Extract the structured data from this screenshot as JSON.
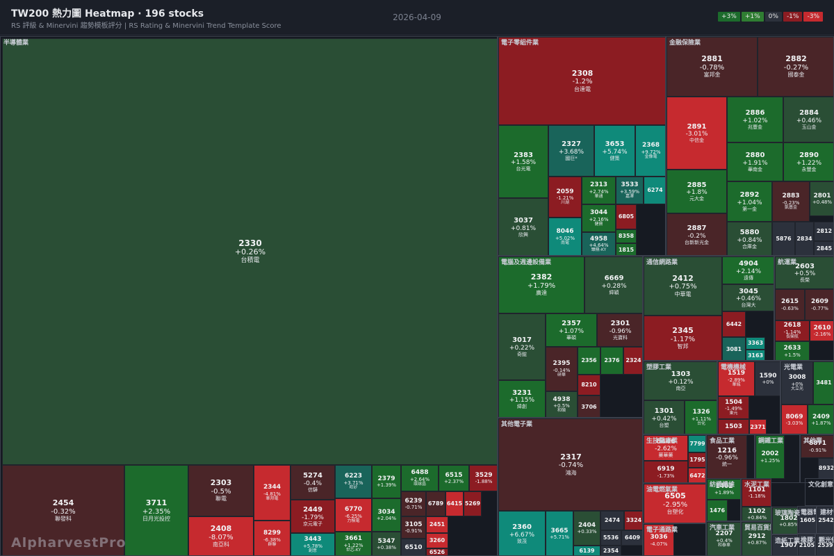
{
  "header": {
    "title": "TW200 熱力圖 Heatmap · 196 stocks",
    "subtitle": "RS 評級 & Minervini 趨勢模板評分 | RS Rating & Minervini Trend Template Score",
    "date": "2026-04-09",
    "legend": [
      {
        "label": "+3%",
        "color": "#1c6b2c"
      },
      {
        "label": "+1%",
        "color": "#2f7d32"
      },
      {
        "label": "0%",
        "color": "#2c313c"
      },
      {
        "label": "-1%",
        "color": "#8c1c22"
      },
      {
        "label": "-3%",
        "color": "#c62a2f"
      }
    ]
  },
  "watermark": "AlpharvestPro",
  "chart_data": {
    "type": "treemap",
    "sectors": [
      {
        "name": "半導體業",
        "stocks": [
          {
            "code": "2330",
            "chg": "+0.26%",
            "name": "台積電"
          },
          {
            "code": "2454",
            "chg": "-0.32%",
            "name": "聯發科"
          },
          {
            "code": "3711",
            "chg": "+2.35%",
            "name": "日月光投控"
          },
          {
            "code": "2303",
            "chg": "-0.5%",
            "name": "聯電"
          },
          {
            "code": "2408",
            "chg": "-8.07%",
            "name": "南亞科"
          },
          {
            "code": "2344",
            "chg": "-4.81%",
            "name": "華邦電"
          },
          {
            "code": "8299",
            "chg": "-6.38%",
            "name": "群聯"
          },
          {
            "code": "5274",
            "chg": "-0.4%",
            "name": "信驊"
          },
          {
            "code": "2449",
            "chg": "-1.79%",
            "name": "京元電子"
          },
          {
            "code": "3443",
            "chg": "+5.78%",
            "name": "創意"
          },
          {
            "code": "6223",
            "chg": "+3.71%",
            "name": "旺矽"
          },
          {
            "code": "6770",
            "chg": "-6.25%",
            "name": "力積電"
          },
          {
            "code": "3661",
            "chg": "+1.22%",
            "name": "世芯-KY"
          },
          {
            "code": "2379",
            "chg": "+1.39%",
            "name": ""
          },
          {
            "code": "3034",
            "chg": "+2.04%",
            "name": ""
          },
          {
            "code": "5347",
            "chg": "+0.38%",
            "name": ""
          },
          {
            "code": "6488",
            "chg": "+2.64%",
            "name": "環球晶"
          },
          {
            "code": "6515",
            "chg": "+2.37%",
            "name": ""
          },
          {
            "code": "3529",
            "chg": "-1.88%",
            "name": ""
          },
          {
            "code": "6239",
            "chg": "-0.71%",
            "name": ""
          },
          {
            "code": "6789",
            "chg": "",
            "name": ""
          },
          {
            "code": "6415",
            "chg": "",
            "name": ""
          },
          {
            "code": "5269",
            "chg": "",
            "name": ""
          },
          {
            "code": "2451",
            "chg": "",
            "name": ""
          },
          {
            "code": "3105",
            "chg": "-0.91%",
            "name": ""
          },
          {
            "code": "3260",
            "chg": "",
            "name": ""
          },
          {
            "code": "6510",
            "chg": "",
            "name": ""
          },
          {
            "code": "6526",
            "chg": "",
            "name": ""
          }
        ]
      },
      {
        "name": "電子零組件業",
        "stocks": [
          {
            "code": "2308",
            "chg": "-1.2%",
            "name": "台達電"
          },
          {
            "code": "2383",
            "chg": "+1.58%",
            "name": "台光電"
          },
          {
            "code": "2327",
            "chg": "+3.68%",
            "name": "國巨*"
          },
          {
            "code": "3653",
            "chg": "+5.74%",
            "name": "健策"
          },
          {
            "code": "2368",
            "chg": "+9.72%",
            "name": "金像電"
          },
          {
            "code": "3037",
            "chg": "+0.81%",
            "name": "欣興"
          },
          {
            "code": "2059",
            "chg": "-1.21%",
            "name": "川湖"
          },
          {
            "code": "2313",
            "chg": "+2.74%",
            "name": "華通"
          },
          {
            "code": "3533",
            "chg": "+3.59%",
            "name": "嘉澤"
          },
          {
            "code": "6274",
            "chg": "",
            "name": ""
          },
          {
            "code": "3044",
            "chg": "+2.16%",
            "name": "健鼎"
          },
          {
            "code": "6805",
            "chg": "",
            "name": ""
          },
          {
            "code": "8046",
            "chg": "+5.02%",
            "name": "南電"
          },
          {
            "code": "4958",
            "chg": "+4.64%",
            "name": "臻鼎-KY"
          },
          {
            "code": "8358",
            "chg": "",
            "name": ""
          },
          {
            "code": "1815",
            "chg": "",
            "name": ""
          }
        ]
      },
      {
        "name": "金融保險業",
        "stocks": [
          {
            "code": "2881",
            "chg": "-0.78%",
            "name": "富邦金"
          },
          {
            "code": "2882",
            "chg": "-0.27%",
            "name": "國泰金"
          },
          {
            "code": "2891",
            "chg": "-3.01%",
            "name": "中信金"
          },
          {
            "code": "2886",
            "chg": "+1.02%",
            "name": "兆豐金"
          },
          {
            "code": "2884",
            "chg": "+0.46%",
            "name": "玉山金"
          },
          {
            "code": "2880",
            "chg": "+1.91%",
            "name": "華南金"
          },
          {
            "code": "2890",
            "chg": "+1.22%",
            "name": "永豐金"
          },
          {
            "code": "2885",
            "chg": "+1.8%",
            "name": "元大金"
          },
          {
            "code": "2892",
            "chg": "+1.04%",
            "name": "第一金"
          },
          {
            "code": "2883",
            "chg": "-0.23%",
            "name": "凱基金"
          },
          {
            "code": "2801",
            "chg": "+0.48%",
            "name": ""
          },
          {
            "code": "2887",
            "chg": "-0.2%",
            "name": "台新新光金"
          },
          {
            "code": "5880",
            "chg": "+0.84%",
            "name": "合庫金"
          },
          {
            "code": "5876",
            "chg": "",
            "name": ""
          },
          {
            "code": "2834",
            "chg": "",
            "name": ""
          },
          {
            "code": "2812",
            "chg": "",
            "name": ""
          },
          {
            "code": "2845",
            "chg": "",
            "name": ""
          }
        ]
      },
      {
        "name": "電腦及週邊設備業",
        "stocks": [
          {
            "code": "2382",
            "chg": "+1.79%",
            "name": "廣達"
          },
          {
            "code": "6669",
            "chg": "+0.28%",
            "name": "緯穎"
          },
          {
            "code": "3017",
            "chg": "+0.22%",
            "name": "奇鋐"
          },
          {
            "code": "2357",
            "chg": "+1.07%",
            "name": "華碩"
          },
          {
            "code": "2301",
            "chg": "-0.96%",
            "name": "光寶科"
          },
          {
            "code": "2395",
            "chg": "-0.14%",
            "name": "研華"
          },
          {
            "code": "2356",
            "chg": "",
            "name": ""
          },
          {
            "code": "2376",
            "chg": "",
            "name": ""
          },
          {
            "code": "2324",
            "chg": "",
            "name": ""
          },
          {
            "code": "8210",
            "chg": "",
            "name": ""
          },
          {
            "code": "3231",
            "chg": "+1.15%",
            "name": "緯創"
          },
          {
            "code": "4938",
            "chg": "+0.5%",
            "name": "和碩"
          },
          {
            "code": "3706",
            "chg": "",
            "name": ""
          }
        ]
      },
      {
        "name": "通信網路業",
        "stocks": [
          {
            "code": "2412",
            "chg": "+0.75%",
            "name": "中華電"
          },
          {
            "code": "4904",
            "chg": "+2.14%",
            "name": "遠傳"
          },
          {
            "code": "3045",
            "chg": "+0.46%",
            "name": "台灣大"
          },
          {
            "code": "2345",
            "chg": "-1.17%",
            "name": "智邦"
          },
          {
            "code": "6442",
            "chg": "",
            "name": ""
          },
          {
            "code": "3081",
            "chg": "",
            "name": ""
          },
          {
            "code": "3363",
            "chg": "",
            "name": ""
          },
          {
            "code": "3163",
            "chg": "",
            "name": ""
          }
        ]
      },
      {
        "name": "航運業",
        "stocks": [
          {
            "code": "2603",
            "chg": "+0.5%",
            "name": "長榮"
          },
          {
            "code": "2615",
            "chg": "-0.63%",
            "name": ""
          },
          {
            "code": "2609",
            "chg": "-0.77%",
            "name": ""
          },
          {
            "code": "2618",
            "chg": "-1.14%",
            "name": "長榮航"
          },
          {
            "code": "2610",
            "chg": "-2.16%",
            "name": ""
          },
          {
            "code": "2633",
            "chg": "+1.5%",
            "name": ""
          }
        ]
      },
      {
        "name": "塑膠工業",
        "stocks": [
          {
            "code": "1303",
            "chg": "+0.12%",
            "name": "南亞"
          },
          {
            "code": "1301",
            "chg": "+0.42%",
            "name": "台塑"
          },
          {
            "code": "1326",
            "chg": "+1.11%",
            "name": "台化"
          }
        ]
      },
      {
        "name": "電機機械",
        "stocks": [
          {
            "code": "1519",
            "chg": "-2.89%",
            "name": "華城"
          },
          {
            "code": "1590",
            "chg": "+0%",
            "name": ""
          },
          {
            "code": "1504",
            "chg": "-1.49%",
            "name": "東元"
          },
          {
            "code": "1503",
            "chg": "",
            "name": ""
          },
          {
            "code": "2371",
            "chg": "",
            "name": ""
          }
        ]
      },
      {
        "name": "光電業",
        "stocks": [
          {
            "code": "3008",
            "chg": "+0%",
            "name": "大立光"
          },
          {
            "code": "3481",
            "chg": "",
            "name": ""
          },
          {
            "code": "8069",
            "chg": "-3.03%",
            "name": ""
          },
          {
            "code": "2409",
            "chg": "+1.87%",
            "name": ""
          }
        ]
      },
      {
        "name": "其他電子業",
        "stocks": [
          {
            "code": "2317",
            "chg": "-0.74%",
            "name": "鴻海"
          },
          {
            "code": "2360",
            "chg": "+6.67%",
            "name": "致茂"
          },
          {
            "code": "3665",
            "chg": "+5.71%",
            "name": ""
          },
          {
            "code": "2404",
            "chg": "+0.33%",
            "name": ""
          },
          {
            "code": "2474",
            "chg": "",
            "name": ""
          },
          {
            "code": "3324",
            "chg": "",
            "name": ""
          },
          {
            "code": "5536",
            "chg": "",
            "name": ""
          },
          {
            "code": "6409",
            "chg": "",
            "name": ""
          },
          {
            "code": "6139",
            "chg": "",
            "name": ""
          },
          {
            "code": "2354",
            "chg": "",
            "name": ""
          }
        ]
      },
      {
        "name": "生技醫療業",
        "stocks": [
          {
            "code": "6446",
            "chg": "-2.62%",
            "name": "藥華藥"
          },
          {
            "code": "6919",
            "chg": "-1.73%",
            "name": ""
          },
          {
            "code": "7799",
            "chg": "",
            "name": ""
          },
          {
            "code": "1795",
            "chg": "",
            "name": ""
          },
          {
            "code": "6472",
            "chg": "",
            "name": ""
          }
        ]
      },
      {
        "name": "食品工業",
        "stocks": [
          {
            "code": "1216",
            "chg": "-0.96%",
            "name": "統一"
          }
        ]
      },
      {
        "name": "鋼鐵工業",
        "stocks": [
          {
            "code": "2002",
            "chg": "+1.25%",
            "name": ""
          }
        ]
      },
      {
        "name": "其他業",
        "stocks": [
          {
            "code": "8871",
            "chg": "-0.91%",
            "name": ""
          },
          {
            "code": "8932",
            "chg": "",
            "name": ""
          }
        ]
      },
      {
        "name": "油電燃氣業",
        "stocks": [
          {
            "code": "6505",
            "chg": "-2.95%",
            "name": "台塑化"
          }
        ]
      },
      {
        "name": "紡織纖維",
        "stocks": [
          {
            "code": "1402",
            "chg": "+1.89%",
            "name": ""
          },
          {
            "code": "1476",
            "chg": "",
            "name": ""
          }
        ]
      },
      {
        "name": "水泥工業",
        "stocks": [
          {
            "code": "1101",
            "chg": "-1.18%",
            "name": ""
          },
          {
            "code": "1102",
            "chg": "+0.84%",
            "name": ""
          }
        ]
      },
      {
        "name": "電子通路業",
        "stocks": [
          {
            "code": "3036",
            "chg": "-4.07%",
            "name": ""
          }
        ]
      },
      {
        "name": "汽車工業",
        "stocks": [
          {
            "code": "2207",
            "chg": "+0.4%",
            "name": "和泰車"
          }
        ]
      },
      {
        "name": "貿易百貨業",
        "stocks": [
          {
            "code": "2912",
            "chg": "+0.87%",
            "name": ""
          }
        ]
      },
      {
        "name": "玻璃陶瓷",
        "stocks": [
          {
            "code": "1802",
            "chg": "+0.85%",
            "name": ""
          }
        ]
      },
      {
        "name": "造紙工業",
        "stocks": [
          {
            "code": "1907",
            "chg": "",
            "name": ""
          }
        ]
      },
      {
        "name": "橡膠工業",
        "stocks": [
          {
            "code": "2105",
            "chg": "",
            "name": ""
          }
        ]
      },
      {
        "name": "文化創意業",
        "stocks": [
          {
            "code": "9904",
            "chg": "",
            "name": ""
          }
        ]
      },
      {
        "name": "電器電纜",
        "stocks": [
          {
            "code": "1605",
            "chg": "",
            "name": ""
          }
        ]
      },
      {
        "name": "建材營造",
        "stocks": [
          {
            "code": "2542",
            "chg": "",
            "name": ""
          }
        ]
      },
      {
        "name": "觀光餐旅",
        "stocks": [
          {
            "code": "2539",
            "chg": "",
            "name": ""
          }
        ]
      }
    ]
  }
}
